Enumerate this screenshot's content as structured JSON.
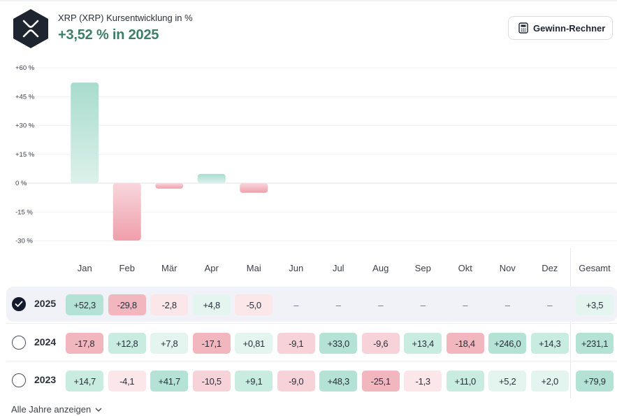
{
  "header": {
    "title": "XRP (XRP) Kursentwicklung in %",
    "subtitle": "+3,52 % in 2025",
    "calc_button_label": "Gewinn-Rechner",
    "logo_icon": "xrp-logo-icon",
    "calc_icon": "calculator-icon"
  },
  "colors": {
    "positive_text": "#3d7f66",
    "bar_positive": "#a8dccd",
    "bar_negative": "#ef9fab",
    "selected_radio": "#141a2e"
  },
  "chart_data": {
    "type": "bar",
    "categories": [
      "Jan",
      "Feb",
      "Mär",
      "Apr",
      "Mai",
      "Jun",
      "Jul",
      "Aug",
      "Sep",
      "Okt",
      "Nov",
      "Dez"
    ],
    "values": [
      52.3,
      -29.8,
      -2.8,
      4.8,
      -5.0,
      null,
      null,
      null,
      null,
      null,
      null,
      null
    ],
    "ylim": [
      -30,
      60
    ],
    "yticks": [
      60,
      45,
      30,
      15,
      0,
      -15,
      -30
    ],
    "ytick_labels": [
      "+60 %",
      "+45 %",
      "+30 %",
      "+15 %",
      "0 %",
      "-15 %",
      "-30 %"
    ],
    "grid": true
  },
  "table": {
    "gesamt_header": "Gesamt",
    "rows": [
      {
        "year": "2025",
        "selected": true,
        "cells": [
          "+52,3",
          "-29,8",
          "-2,8",
          "+4,8",
          "-5,0",
          "–",
          "–",
          "–",
          "–",
          "–",
          "–",
          "–"
        ],
        "values": [
          52.3,
          -29.8,
          -2.8,
          4.8,
          -5.0,
          null,
          null,
          null,
          null,
          null,
          null,
          null
        ],
        "total": "+3,5",
        "total_value": 3.5
      },
      {
        "year": "2024",
        "selected": false,
        "cells": [
          "-17,8",
          "+12,8",
          "+7,8",
          "-17,1",
          "+0,81",
          "-9,1",
          "+33,0",
          "-9,6",
          "+13,4",
          "-18,4",
          "+246,0",
          "+14,3"
        ],
        "values": [
          -17.8,
          12.8,
          7.8,
          -17.1,
          0.81,
          -9.1,
          33.0,
          -9.6,
          13.4,
          -18.4,
          246.0,
          14.3
        ],
        "total": "+231,1",
        "total_value": 231.1
      },
      {
        "year": "2023",
        "selected": false,
        "cells": [
          "+14,7",
          "-4,1",
          "+41,7",
          "-10,5",
          "+9,1",
          "-9,0",
          "+48,3",
          "-25,1",
          "-1,3",
          "+11,0",
          "+5,2",
          "+2,0"
        ],
        "values": [
          14.7,
          -4.1,
          41.7,
          -10.5,
          9.1,
          -9.0,
          48.3,
          -25.1,
          -1.3,
          11.0,
          5.2,
          2.0
        ],
        "total": "+79,9",
        "total_value": 79.9
      }
    ]
  },
  "footer": {
    "all_years_label": "Alle Jahre anzeigen",
    "chevron_icon": "chevron-down-icon"
  }
}
